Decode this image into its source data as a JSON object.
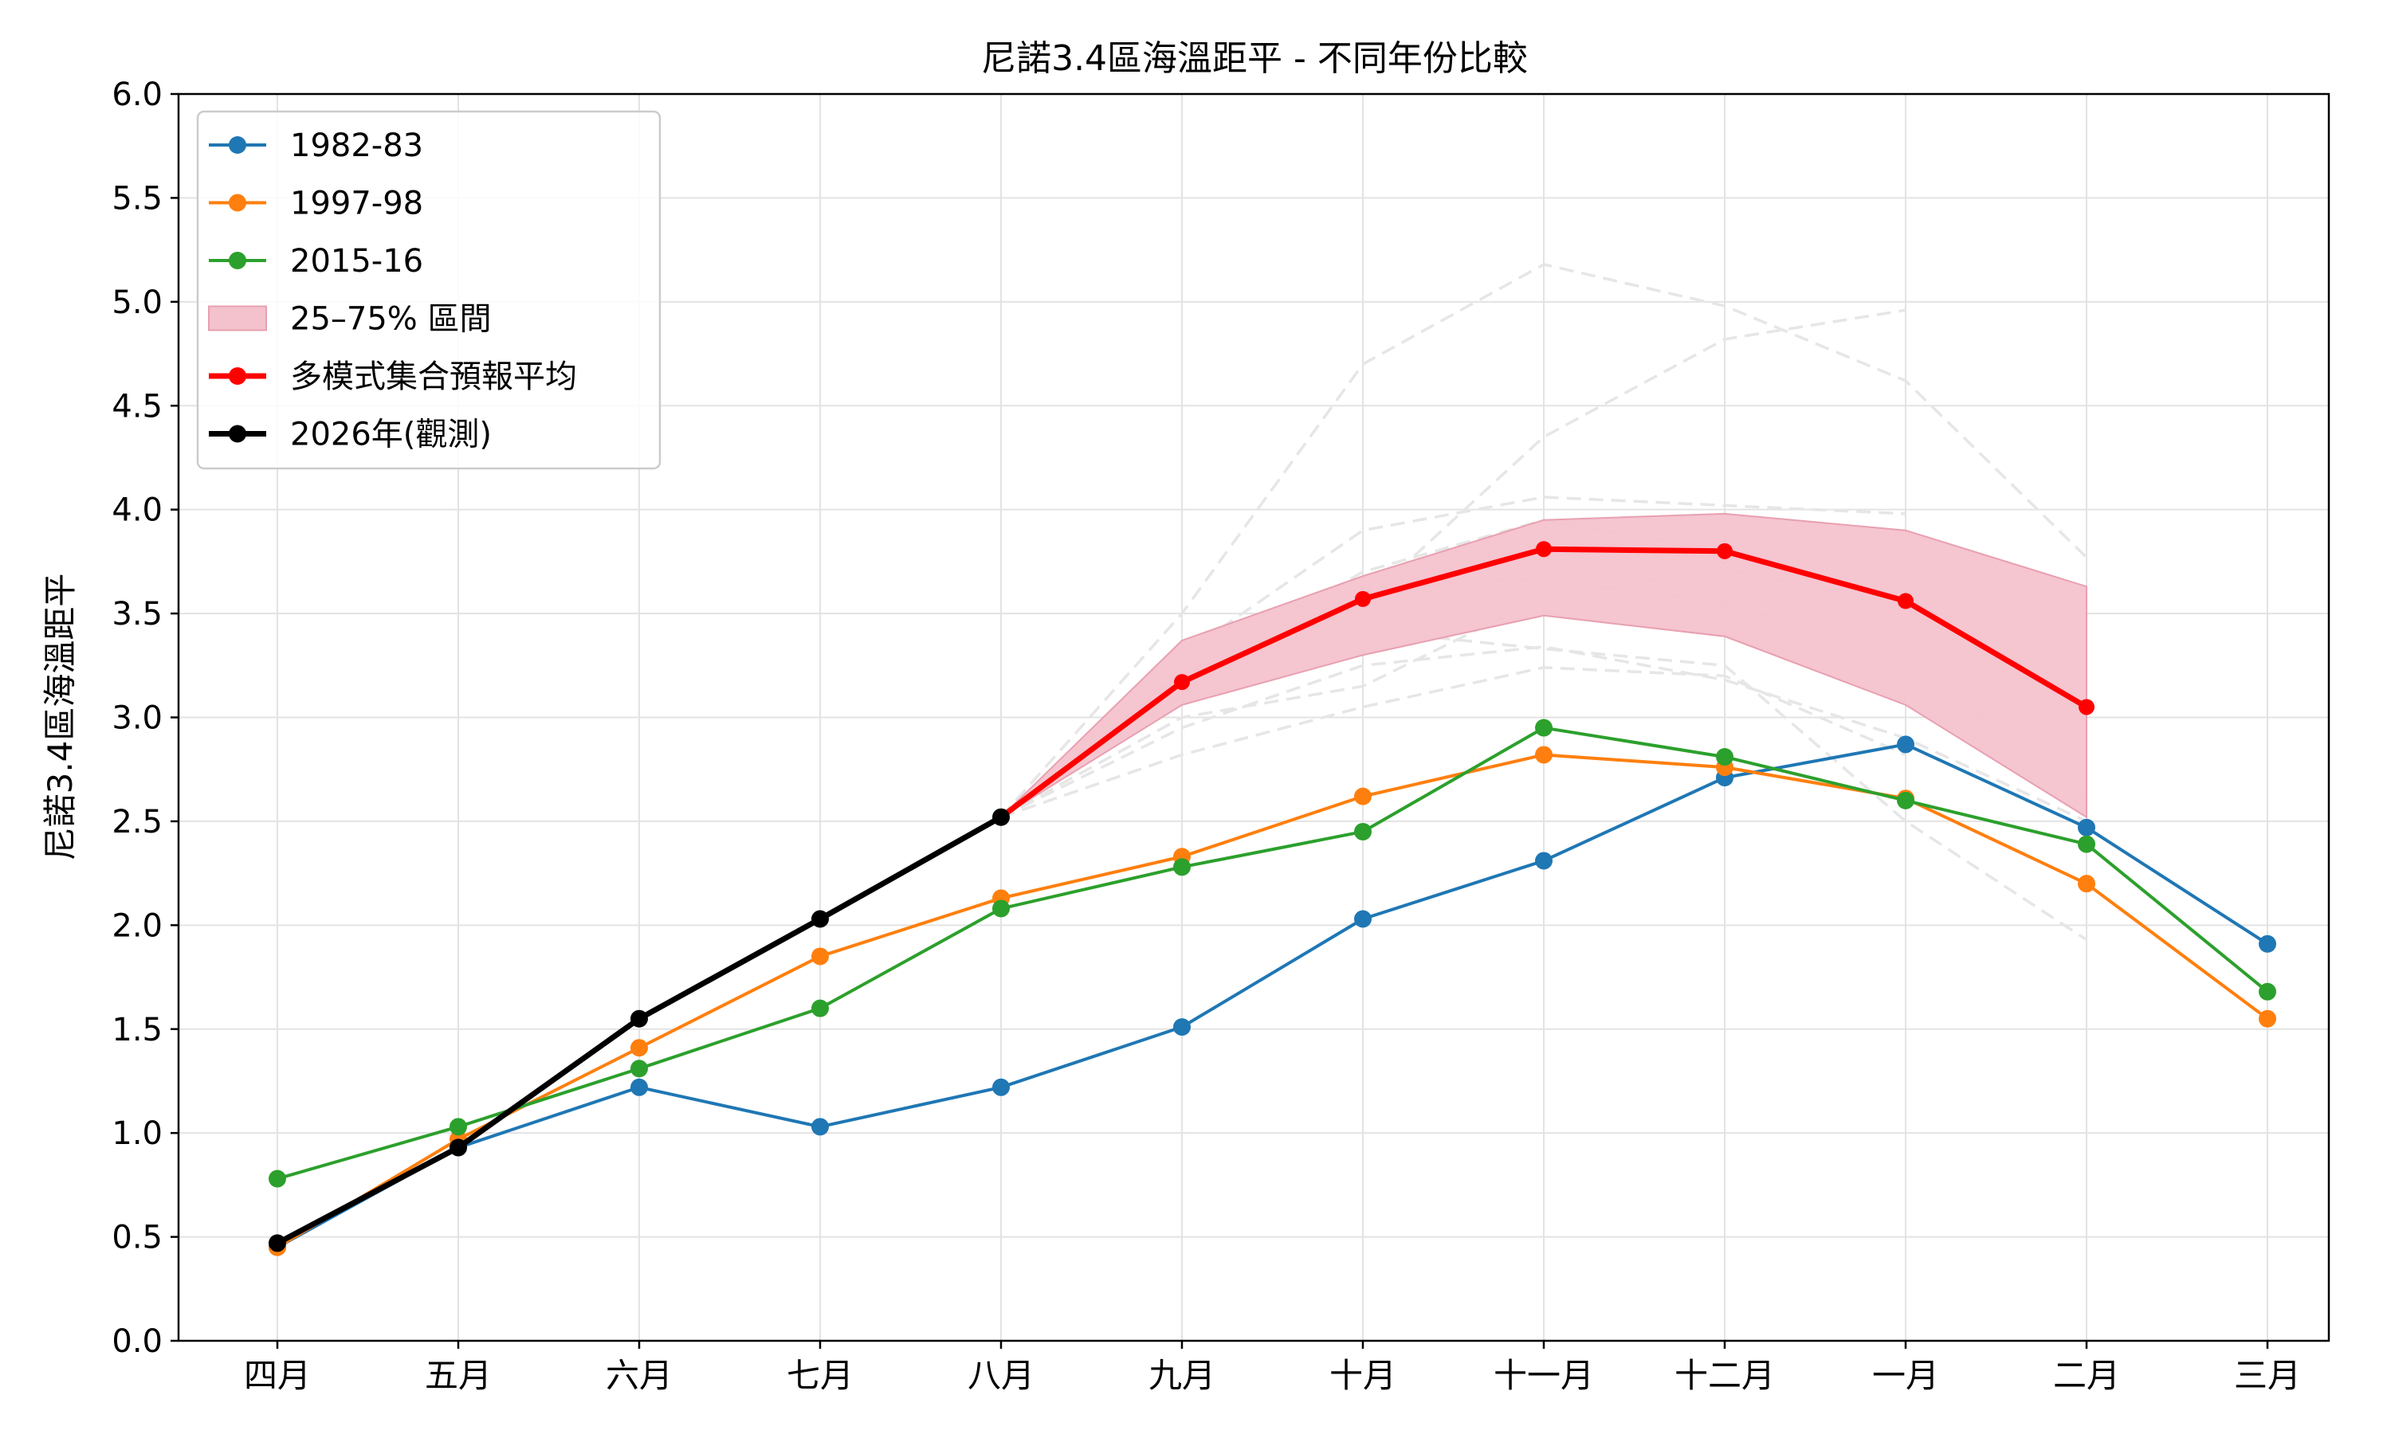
{
  "chart_data": {
    "type": "line",
    "title": "尼諾3.4區海溫距平 - 不同年份比較",
    "xlabel": "",
    "ylabel": "尼諾3.4區海溫距平",
    "ylim": [
      0,
      6
    ],
    "yticks": [
      "0.0",
      "0.5",
      "1.0",
      "1.5",
      "2.0",
      "2.5",
      "3.0",
      "3.5",
      "4.0",
      "4.5",
      "5.0",
      "5.5",
      "6.0"
    ],
    "grid": true,
    "legend_position": "top-left",
    "categories": [
      "四月",
      "五月",
      "六月",
      "七月",
      "八月",
      "九月",
      "十月",
      "十一月",
      "十二月",
      "一月",
      "二月",
      "三月"
    ],
    "series": [
      {
        "name": "1982-83",
        "color": "#1f77b4",
        "values": [
          0.45,
          0.93,
          1.22,
          1.03,
          1.22,
          1.51,
          2.03,
          2.31,
          2.71,
          2.87,
          2.47,
          1.91
        ]
      },
      {
        "name": "1997-98",
        "color": "#ff7f0e",
        "values": [
          0.45,
          0.97,
          1.41,
          1.85,
          2.13,
          2.33,
          2.62,
          2.82,
          2.76,
          2.61,
          2.2,
          1.55
        ]
      },
      {
        "name": "2015-16",
        "color": "#2ca02c",
        "values": [
          0.78,
          1.03,
          1.31,
          1.6,
          2.08,
          2.28,
          2.45,
          2.95,
          2.81,
          2.6,
          2.39,
          1.68
        ]
      }
    ],
    "band": {
      "name": "25–75% 區間",
      "color": "#f4c2cd",
      "edge_color": "#e8a0b0",
      "x_start_index": 4,
      "lower": [
        2.52,
        3.06,
        3.3,
        3.49,
        3.39,
        3.06,
        2.52
      ],
      "upper": [
        2.52,
        3.37,
        3.68,
        3.95,
        3.98,
        3.9,
        3.63
      ]
    },
    "ensemble_mean": {
      "name": "多模式集合預報平均",
      "color": "#ff0000",
      "x_start_index": 4,
      "values": [
        2.52,
        3.17,
        3.57,
        3.81,
        3.8,
        3.56,
        3.05
      ]
    },
    "observed": {
      "name": "2026年(觀測)",
      "color": "#000000",
      "x_start_index": 0,
      "values": [
        0.47,
        0.93,
        1.55,
        2.03,
        2.52
      ]
    },
    "members": {
      "color": "#e6e6e6",
      "x_start_index": 4,
      "lines": [
        [
          2.52,
          3.5,
          4.7,
          5.18,
          4.98,
          4.62,
          3.77
        ],
        [
          2.52,
          3.1,
          3.55,
          4.35,
          4.82,
          4.96
        ],
        [
          2.52,
          3.3,
          3.9,
          4.06,
          4.02,
          3.98
        ],
        [
          2.52,
          3.2,
          3.7,
          3.95,
          3.8
        ],
        [
          2.52,
          2.95,
          3.25,
          3.34,
          3.18,
          2.9,
          2.5
        ],
        [
          2.52,
          2.82,
          3.05,
          3.24,
          3.2,
          2.82
        ],
        [
          2.52,
          3.0,
          3.15,
          3.58,
          3.72,
          3.52
        ],
        [
          2.52,
          3.22,
          3.42,
          3.33,
          3.25,
          2.5,
          1.93
        ],
        [
          2.52,
          3.12,
          3.62,
          3.67,
          3.55,
          3.3,
          2.6
        ]
      ]
    }
  }
}
